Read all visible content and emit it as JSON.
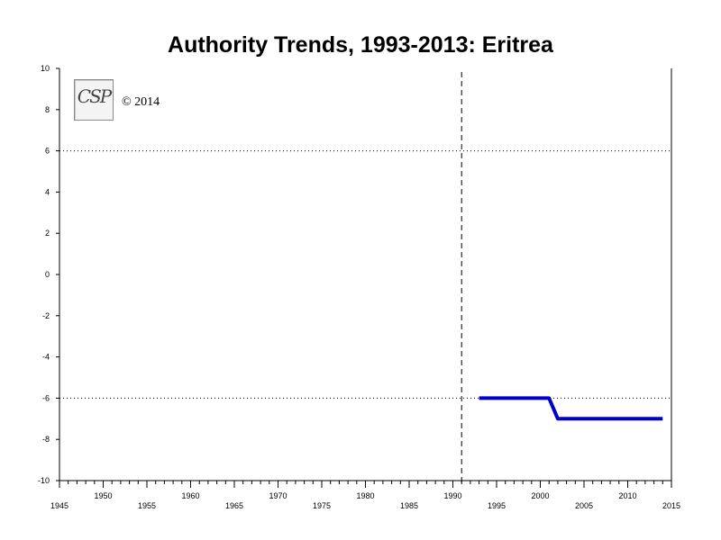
{
  "chart_data": {
    "type": "line",
    "title": "Authority Trends, 1993-2013: Eritrea",
    "xlabel": "",
    "ylabel": "",
    "xlim": [
      1945,
      2015
    ],
    "ylim": [
      -10,
      10
    ],
    "y_ticks": [
      "10",
      "8",
      "6",
      "4",
      "2",
      "0",
      "-2",
      "-4",
      "-6",
      "-8",
      "-10"
    ],
    "x_ticks_low": [
      "1945",
      "1955",
      "1965",
      "1975",
      "1985",
      "1995",
      "2005",
      "2015"
    ],
    "x_ticks_high": [
      "1950",
      "1960",
      "1970",
      "1980",
      "1990",
      "2000",
      "2010"
    ],
    "reference_lines": [
      6,
      -6
    ],
    "vertical_marker": 1991,
    "grid": false,
    "series": [
      {
        "color": "#0000cc",
        "points": [
          {
            "x": 1993,
            "y": -6
          },
          {
            "x": 2001,
            "y": -6
          },
          {
            "x": 2002,
            "y": -7
          },
          {
            "x": 2014,
            "y": -7
          }
        ]
      }
    ]
  },
  "logo": {
    "text": "CSP",
    "copyright": "© 2014"
  }
}
